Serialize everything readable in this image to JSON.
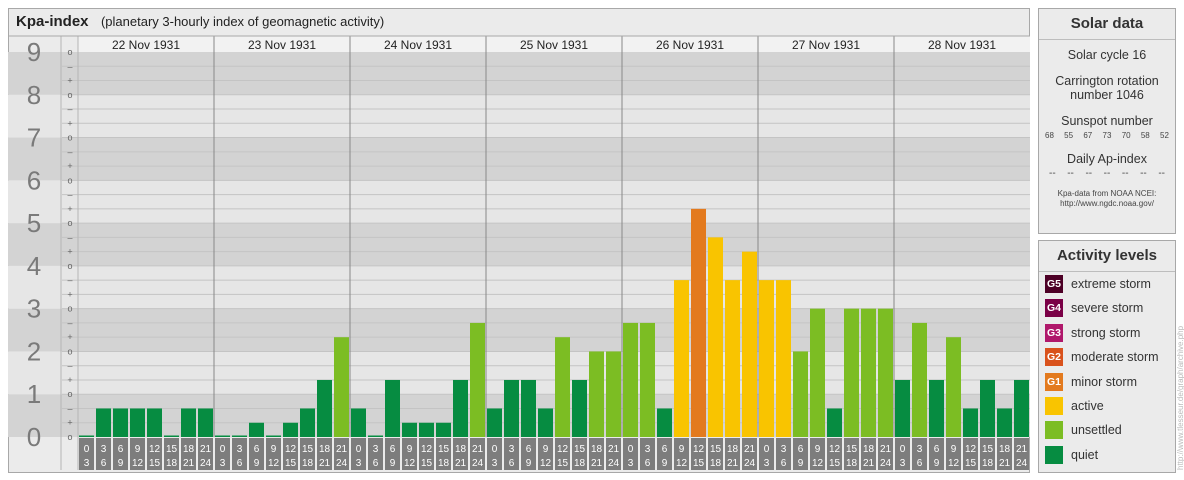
{
  "title": {
    "main": "Kpa-index",
    "sub": "(planetary 3-hourly index of geomagnetic activity)"
  },
  "chart_data": {
    "type": "bar",
    "title": "Kpa-index",
    "subtitle": "(planetary 3-hourly index of geomagnetic activity)",
    "ylim": [
      0,
      9
    ],
    "y_ticks": [
      "0",
      "1",
      "2",
      "3",
      "4",
      "5",
      "6",
      "7",
      "8",
      "9"
    ],
    "y_subticks": [
      "o",
      "+",
      "–",
      "o",
      "+",
      "–",
      "o",
      "+",
      "–",
      "o",
      "+",
      "–",
      "o",
      "+",
      "–",
      "o",
      "+",
      "–",
      "o",
      "+",
      "–",
      "o",
      "+",
      "–",
      "o",
      "+",
      "–",
      "o"
    ],
    "days": [
      "22 Nov 1931",
      "23 Nov 1931",
      "24 Nov 1931",
      "25 Nov 1931",
      "26 Nov 1931",
      "27 Nov 1931",
      "28 Nov 1931"
    ],
    "interval_start": [
      "0",
      "3",
      "6",
      "9",
      "12",
      "15",
      "18",
      "21"
    ],
    "interval_end": [
      "3",
      "6",
      "9",
      "12",
      "15",
      "18",
      "21",
      "24"
    ],
    "values": [
      [
        0,
        0.667,
        0.667,
        0.667,
        0.667,
        0,
        0.667,
        0.667
      ],
      [
        0,
        0,
        0.333,
        0,
        0.333,
        0.667,
        1.333,
        2.333
      ],
      [
        0.667,
        0,
        1.333,
        0.333,
        0.333,
        0.333,
        1.333,
        2.667
      ],
      [
        0.667,
        1.333,
        1.333,
        0.667,
        2.333,
        1.333,
        2,
        2
      ],
      [
        2.667,
        2.667,
        0.667,
        3.667,
        5.333,
        4.667,
        3.667,
        4.333
      ],
      [
        3.667,
        3.667,
        2,
        3,
        0.667,
        3,
        3,
        3
      ],
      [
        1.333,
        2.667,
        1.333,
        2.333,
        0.667,
        1.333,
        0.667,
        1.333
      ]
    ],
    "grid": true,
    "legend_position": "right"
  },
  "solar_data": {
    "heading": "Solar data",
    "solar_cycle": "Solar cycle 16",
    "carrington_line1": "Carrington rotation",
    "carrington_line2": "number 1046",
    "sunspot_heading": "Sunspot number",
    "sunspot_numbers": [
      "68",
      "55",
      "67",
      "73",
      "70",
      "58",
      "52"
    ],
    "ap_heading": "Daily Ap-index",
    "ap_values": [
      "--",
      "--",
      "--",
      "--",
      "--",
      "--",
      "--"
    ],
    "credit_line1": "Kpa-data from NOAA NCEI:",
    "credit_line2": "http://www.ngdc.noaa.gov/"
  },
  "activity_levels": {
    "heading": "Activity levels",
    "items": [
      {
        "code": "G5",
        "label": "extreme storm",
        "color": "#4d0026"
      },
      {
        "code": "G4",
        "label": "severe storm",
        "color": "#7a0046"
      },
      {
        "code": "G3",
        "label": "strong storm",
        "color": "#b0186b"
      },
      {
        "code": "G2",
        "label": "moderate storm",
        "color": "#d9521c"
      },
      {
        "code": "G1",
        "label": "minor storm",
        "color": "#e37a1e"
      },
      {
        "code": "",
        "label": "active",
        "color": "#f9c400"
      },
      {
        "code": "",
        "label": "unsettled",
        "color": "#7cbd23"
      },
      {
        "code": "",
        "label": "quiet",
        "color": "#068c41"
      }
    ]
  },
  "watermark": "http://www.tlesseur.de/graph/archive.php"
}
